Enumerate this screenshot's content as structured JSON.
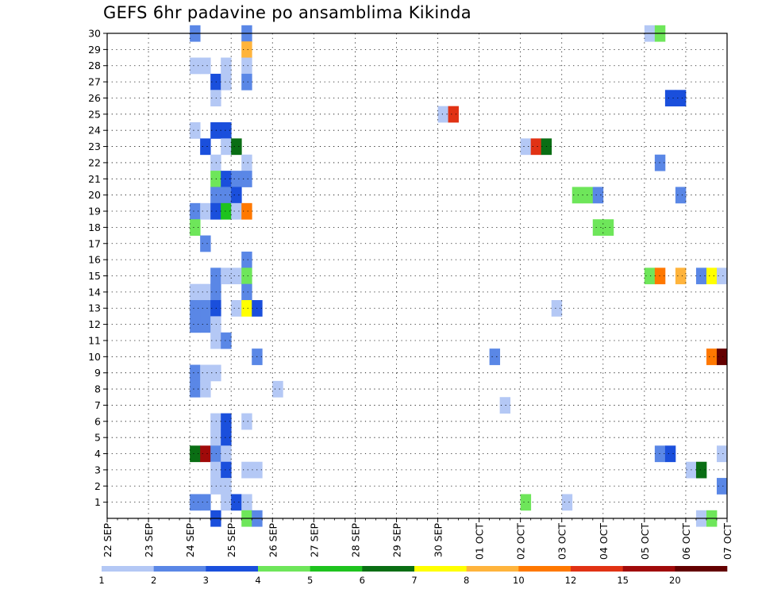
{
  "title": "GEFS 6hr padavine po ansamblima Kikinda",
  "chart_data": {
    "type": "heatmap",
    "title": "GEFS 6hr padavine po ansamblima Kikinda",
    "x_tick_labels": [
      "22 SEP",
      "23 SEP",
      "24 SEP",
      "25 SEP",
      "26 SEP",
      "27 SEP",
      "28 SEP",
      "29 SEP",
      "30 SEP",
      "01 OCT",
      "02 OCT",
      "03 OCT",
      "04 OCT",
      "05 OCT",
      "06 OCT",
      "07 OCT"
    ],
    "y_tick_labels": [
      "1",
      "2",
      "3",
      "4",
      "5",
      "6",
      "7",
      "8",
      "9",
      "10",
      "11",
      "12",
      "13",
      "14",
      "15",
      "16",
      "17",
      "18",
      "19",
      "20",
      "21",
      "22",
      "23",
      "24",
      "25",
      "26",
      "27",
      "28",
      "29",
      "30"
    ],
    "grid": true,
    "legend_levels": [
      "1",
      "2",
      "3",
      "4",
      "5",
      "6",
      "7",
      "8",
      "10",
      "12",
      "15",
      "20"
    ],
    "legend_colors": [
      "#b4c8f5",
      "#5a87e6",
      "#1a4fdc",
      "#6ee65a",
      "#1ec31e",
      "#0a6e14",
      "#ffff00",
      "#ffb43c",
      "#ff7800",
      "#e13214",
      "#a00a0a",
      "#640000"
    ],
    "cells_note": "[time_step_index (6-hourly from 22 SEP 00Z), ensemble_member (0-30), color_class_index 0-11 per legend]",
    "cells": [
      [
        8,
        30,
        1
      ],
      [
        8,
        28,
        0
      ],
      [
        8,
        24,
        0
      ],
      [
        8,
        19,
        1
      ],
      [
        8,
        18,
        3
      ],
      [
        8,
        14,
        0
      ],
      [
        8,
        13,
        1
      ],
      [
        8,
        12,
        1
      ],
      [
        8,
        9,
        1
      ],
      [
        8,
        8,
        1
      ],
      [
        8,
        4,
        5
      ],
      [
        8,
        1,
        1
      ],
      [
        9,
        28,
        0
      ],
      [
        9,
        23,
        2
      ],
      [
        9,
        19,
        0
      ],
      [
        9,
        17,
        1
      ],
      [
        9,
        14,
        0
      ],
      [
        9,
        13,
        1
      ],
      [
        9,
        12,
        1
      ],
      [
        9,
        9,
        0
      ],
      [
        9,
        8,
        0
      ],
      [
        9,
        4,
        10
      ],
      [
        9,
        1,
        1
      ],
      [
        10,
        27,
        2
      ],
      [
        10,
        26,
        0
      ],
      [
        10,
        24,
        2
      ],
      [
        10,
        22,
        0
      ],
      [
        10,
        21,
        3
      ],
      [
        10,
        20,
        1
      ],
      [
        10,
        19,
        2
      ],
      [
        10,
        15,
        1
      ],
      [
        10,
        14,
        1
      ],
      [
        10,
        13,
        2
      ],
      [
        10,
        12,
        0
      ],
      [
        10,
        11,
        0
      ],
      [
        10,
        9,
        0
      ],
      [
        10,
        6,
        0
      ],
      [
        10,
        5,
        0
      ],
      [
        10,
        4,
        1
      ],
      [
        10,
        3,
        0
      ],
      [
        10,
        2,
        0
      ],
      [
        10,
        0,
        2
      ],
      [
        11,
        28,
        0
      ],
      [
        11,
        27,
        0
      ],
      [
        11,
        24,
        2
      ],
      [
        11,
        23,
        0
      ],
      [
        11,
        21,
        2
      ],
      [
        11,
        20,
        1
      ],
      [
        11,
        19,
        4
      ],
      [
        11,
        15,
        0
      ],
      [
        11,
        11,
        1
      ],
      [
        11,
        6,
        2
      ],
      [
        11,
        5,
        2
      ],
      [
        11,
        4,
        0
      ],
      [
        11,
        3,
        2
      ],
      [
        11,
        2,
        0
      ],
      [
        11,
        1,
        0
      ],
      [
        12,
        23,
        5
      ],
      [
        12,
        21,
        1
      ],
      [
        12,
        20,
        2
      ],
      [
        12,
        19,
        0
      ],
      [
        12,
        15,
        0
      ],
      [
        12,
        13,
        0
      ],
      [
        12,
        1,
        2
      ],
      [
        13,
        30,
        1
      ],
      [
        13,
        29,
        7
      ],
      [
        13,
        28,
        0
      ],
      [
        13,
        27,
        1
      ],
      [
        13,
        22,
        0
      ],
      [
        13,
        21,
        1
      ],
      [
        13,
        19,
        8
      ],
      [
        13,
        16,
        1
      ],
      [
        13,
        15,
        3
      ],
      [
        13,
        14,
        1
      ],
      [
        13,
        13,
        6
      ],
      [
        13,
        6,
        0
      ],
      [
        13,
        3,
        0
      ],
      [
        13,
        1,
        0
      ],
      [
        13,
        0,
        3
      ],
      [
        14,
        13,
        2
      ],
      [
        14,
        10,
        1
      ],
      [
        14,
        3,
        0
      ],
      [
        14,
        0,
        1
      ],
      [
        16,
        8,
        0
      ],
      [
        32,
        25,
        0
      ],
      [
        33,
        25,
        9
      ],
      [
        37,
        10,
        1
      ],
      [
        38,
        7,
        0
      ],
      [
        40,
        23,
        0
      ],
      [
        40,
        1,
        3
      ],
      [
        41,
        23,
        9
      ],
      [
        42,
        23,
        5
      ],
      [
        43,
        13,
        0
      ],
      [
        44,
        1,
        0
      ],
      [
        45,
        20,
        3
      ],
      [
        46,
        20,
        3
      ],
      [
        47,
        20,
        1
      ],
      [
        47,
        18,
        3
      ],
      [
        48,
        18,
        3
      ],
      [
        52,
        30,
        0
      ],
      [
        52,
        15,
        3
      ],
      [
        53,
        30,
        3
      ],
      [
        53,
        22,
        1
      ],
      [
        53,
        15,
        8
      ],
      [
        53,
        4,
        1
      ],
      [
        54,
        26,
        2
      ],
      [
        54,
        4,
        2
      ],
      [
        55,
        26,
        2
      ],
      [
        55,
        20,
        1
      ],
      [
        55,
        15,
        7
      ],
      [
        56,
        3,
        0
      ],
      [
        57,
        15,
        1
      ],
      [
        57,
        3,
        5
      ],
      [
        57,
        0,
        0
      ],
      [
        58,
        15,
        6
      ],
      [
        58,
        10,
        8
      ],
      [
        58,
        0,
        3
      ],
      [
        59,
        15,
        0
      ],
      [
        59,
        10,
        11
      ],
      [
        59,
        4,
        0
      ],
      [
        59,
        2,
        1
      ]
    ]
  }
}
